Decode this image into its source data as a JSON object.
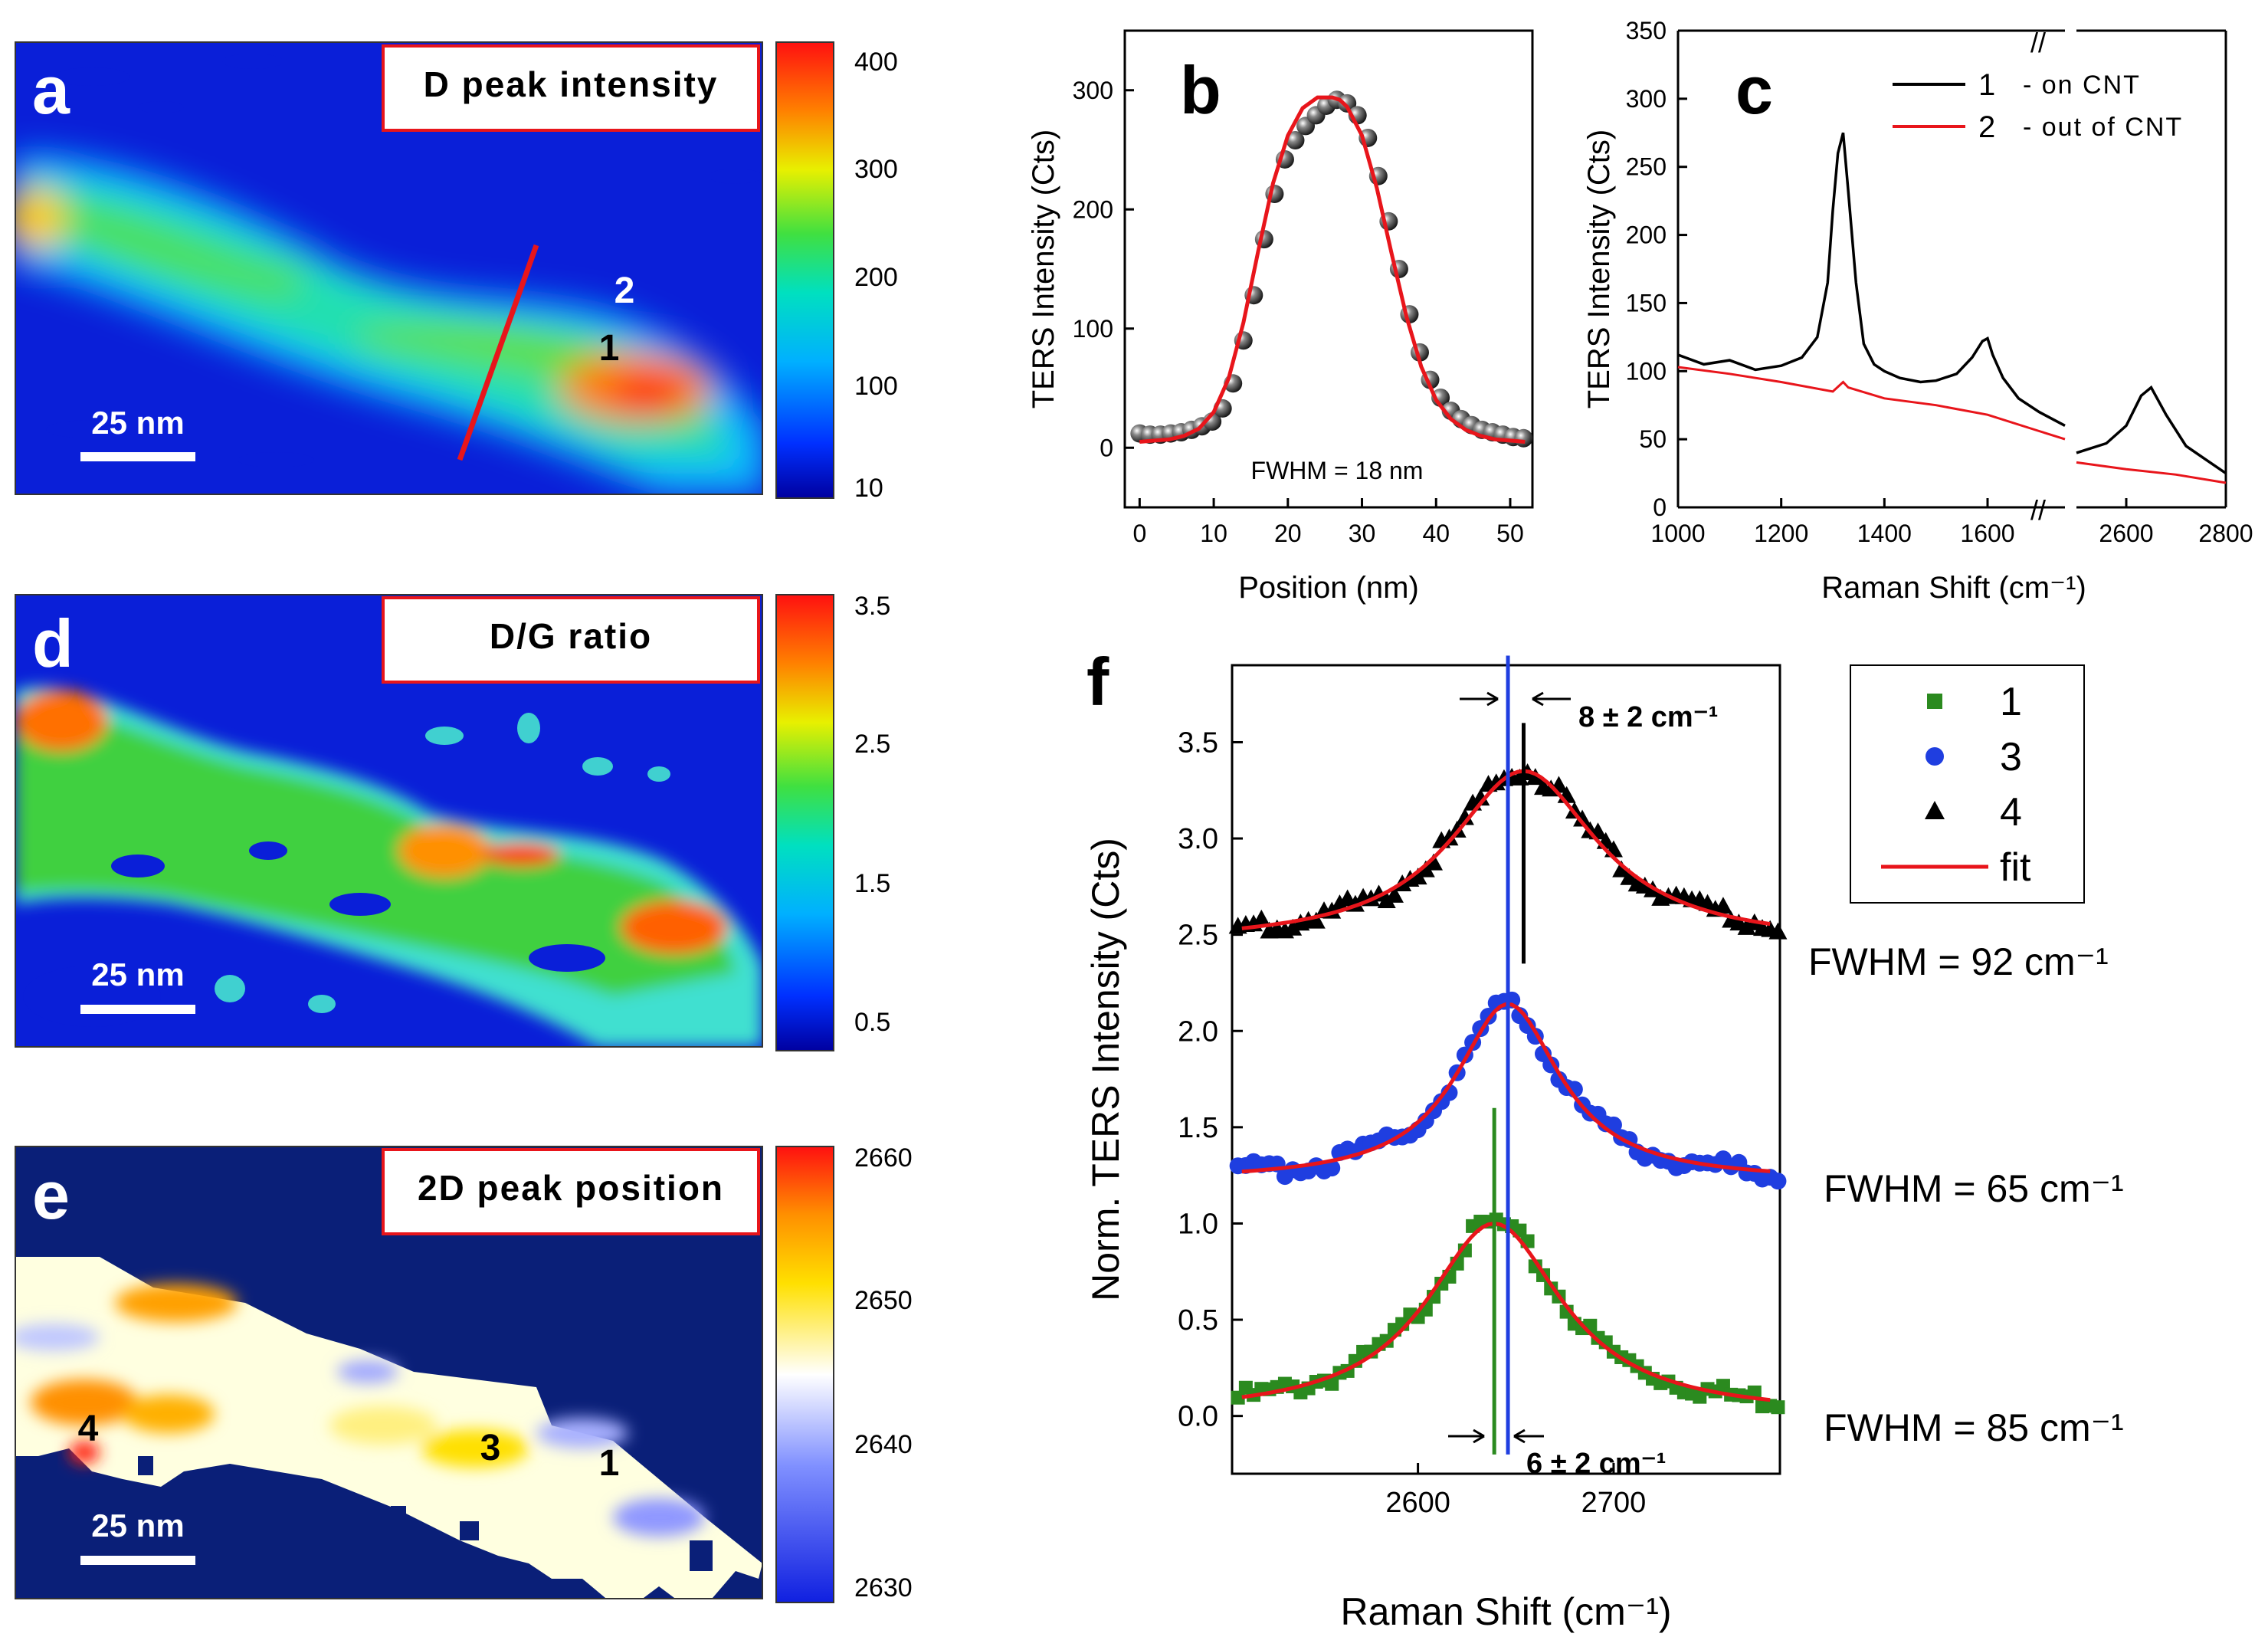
{
  "panels": {
    "a": {
      "letter": "a",
      "title": "D peak intensity",
      "colorbar_ticks": [
        "400",
        "300",
        "200",
        "100",
        "10"
      ],
      "scale_label": "25 nm",
      "points": [
        "2",
        "1"
      ]
    },
    "d": {
      "letter": "d",
      "title": "D/G ratio",
      "colorbar_ticks": [
        "3.5",
        "2.5",
        "1.5",
        "0.5"
      ],
      "scale_label": "25 nm"
    },
    "e": {
      "letter": "e",
      "title": "2D peak position",
      "colorbar_ticks": [
        "2660",
        "2650",
        "2640",
        "2630"
      ],
      "scale_label": "25 nm",
      "points": [
        "4",
        "3",
        "1"
      ]
    },
    "b": {
      "letter": "b",
      "annotation": "FWHM = 18 nm"
    },
    "c": {
      "letter": "c",
      "break_mark": "//"
    },
    "f": {
      "letter": "f",
      "shift_top": "8 ± 2 cm⁻¹",
      "shift_bottom": "6 ± 2 cm⁻¹",
      "fwhm": [
        "FWHM = 92 cm⁻¹",
        "FWHM = 65 cm⁻¹",
        "FWHM = 85 cm⁻¹"
      ]
    }
  },
  "chart_data": [
    {
      "panel": "b",
      "type": "scatter",
      "title": "",
      "xlabel": "Position (nm)",
      "ylabel": "TERS Intensity (Cts)",
      "xlim": [
        -2,
        53
      ],
      "ylim": [
        -50,
        350
      ],
      "xticks": [
        0,
        10,
        20,
        30,
        40,
        50
      ],
      "yticks": [
        0,
        100,
        200,
        300
      ],
      "series": [
        {
          "name": "data",
          "marker": "sphere",
          "color": "#222222",
          "x": [
            0,
            1.4,
            2.8,
            4.2,
            5.6,
            7,
            8.4,
            9.8,
            11.2,
            12.6,
            14,
            15.4,
            16.8,
            18.2,
            19.6,
            21,
            22.4,
            23.8,
            25.2,
            26.6,
            28,
            29.4,
            30.8,
            32.2,
            33.6,
            35,
            36.4,
            37.8,
            39.2,
            40.6,
            42,
            43.4,
            44.8,
            46.2,
            47.6,
            49,
            50.4,
            51.8
          ],
          "y": [
            12,
            11,
            11,
            12,
            13,
            15,
            18,
            22,
            33,
            54,
            90,
            128,
            175,
            213,
            242,
            258,
            270,
            279,
            287,
            292,
            289,
            279,
            260,
            228,
            190,
            150,
            112,
            80,
            57,
            42,
            31,
            24,
            19,
            15,
            13,
            11,
            9,
            8
          ]
        },
        {
          "name": "fit",
          "line": true,
          "color": "#e8151b",
          "x": [
            0,
            2,
            4,
            6,
            8,
            10,
            12,
            14,
            16,
            18,
            20,
            22,
            24,
            26,
            27,
            28,
            30,
            32,
            34,
            36,
            38,
            40,
            42,
            44,
            46,
            48,
            50,
            52
          ],
          "y": [
            5,
            6,
            7,
            10,
            16,
            30,
            58,
            105,
            165,
            222,
            262,
            285,
            294,
            294,
            292,
            286,
            262,
            218,
            163,
            110,
            68,
            40,
            24,
            15,
            10,
            7,
            6,
            5
          ]
        }
      ]
    },
    {
      "panel": "c",
      "type": "line",
      "title": "",
      "xlabel": "Raman Shift (cm⁻¹)",
      "ylabel": "TERS Intensity (Cts)",
      "ylim": [
        0,
        350
      ],
      "yticks": [
        0,
        50,
        100,
        150,
        200,
        250,
        300,
        350
      ],
      "xticks": [
        "1000",
        "1200",
        "1400",
        "1600",
        "2600",
        "2800"
      ],
      "x_segments": [
        [
          1000,
          1750
        ],
        [
          2500,
          2800
        ]
      ],
      "legend": [
        {
          "num": "1",
          "text": "- on CNT",
          "color": "#000000"
        },
        {
          "num": "2",
          "text": "- out of CNT",
          "color": "#e8151b"
        }
      ],
      "series": [
        {
          "name": "1 - on CNT",
          "color": "#000000",
          "x": [
            1000,
            1050,
            1100,
            1150,
            1200,
            1240,
            1270,
            1290,
            1300,
            1310,
            1320,
            1330,
            1345,
            1360,
            1380,
            1400,
            1430,
            1470,
            1500,
            1540,
            1570,
            1590,
            1600,
            1610,
            1630,
            1660,
            1700,
            1750,
            2500,
            2560,
            2600,
            2630,
            2650,
            2680,
            2720,
            2760,
            2800
          ],
          "y": [
            112,
            105,
            108,
            101,
            104,
            110,
            125,
            165,
            218,
            260,
            275,
            232,
            165,
            120,
            105,
            100,
            95,
            92,
            93,
            98,
            110,
            122,
            124,
            112,
            95,
            80,
            70,
            60,
            40,
            47,
            60,
            82,
            88,
            68,
            45,
            35,
            25
          ]
        },
        {
          "name": "2 - out of CNT",
          "color": "#e8151b",
          "x": [
            1000,
            1100,
            1200,
            1300,
            1320,
            1330,
            1400,
            1500,
            1600,
            1700,
            1750,
            2500,
            2600,
            2700,
            2800
          ],
          "y": [
            103,
            98,
            92,
            85,
            92,
            88,
            80,
            75,
            68,
            56,
            50,
            33,
            28,
            24,
            18
          ]
        }
      ]
    },
    {
      "panel": "f",
      "type": "scatter",
      "title": "",
      "xlabel": "Raman Shift (cm⁻¹)",
      "ylabel": "Norm. TERS Intensity (Cts)",
      "xlim": [
        2505,
        2785
      ],
      "ylim": [
        -0.3,
        3.9
      ],
      "xticks": [
        2600,
        2700
      ],
      "yticks": [
        0.0,
        0.5,
        1.0,
        1.5,
        2.0,
        2.5,
        3.0,
        3.5
      ],
      "ytick_labels": [
        "0.0",
        "0.5",
        "1.0",
        "1.5",
        "2.0",
        "2.5",
        "3.0",
        "3.5"
      ],
      "legend": [
        {
          "label": "1",
          "marker": "square",
          "color": "#2b8a1f"
        },
        {
          "label": "3",
          "marker": "circle",
          "color": "#1f3ee0"
        },
        {
          "label": "4",
          "marker": "triangle",
          "color": "#000000"
        },
        {
          "label": "fit",
          "marker": "line",
          "color": "#e8151b"
        }
      ],
      "vlines": [
        {
          "x": 2639,
          "ymin": -0.2,
          "ymax": 1.6,
          "color": "#2b8a1f"
        },
        {
          "x": 2646,
          "ymin": -0.2,
          "ymax": 3.95,
          "color": "#1f3ee0"
        },
        {
          "x": 2654,
          "ymin": 2.35,
          "ymax": 3.6,
          "color": "#000000"
        }
      ],
      "series": [
        {
          "name": "1",
          "marker": "square",
          "color": "#2b8a1f",
          "center": 2639,
          "fwhm": 85,
          "base": 0.0,
          "amp": 1.0
        },
        {
          "name": "3",
          "marker": "circle",
          "color": "#1f3ee0",
          "center": 2646,
          "fwhm": 65,
          "base": 1.22,
          "amp": 0.92
        },
        {
          "name": "4",
          "marker": "triangle",
          "color": "#000000",
          "center": 2654,
          "fwhm": 92,
          "base": 2.45,
          "amp": 0.9
        }
      ]
    }
  ]
}
